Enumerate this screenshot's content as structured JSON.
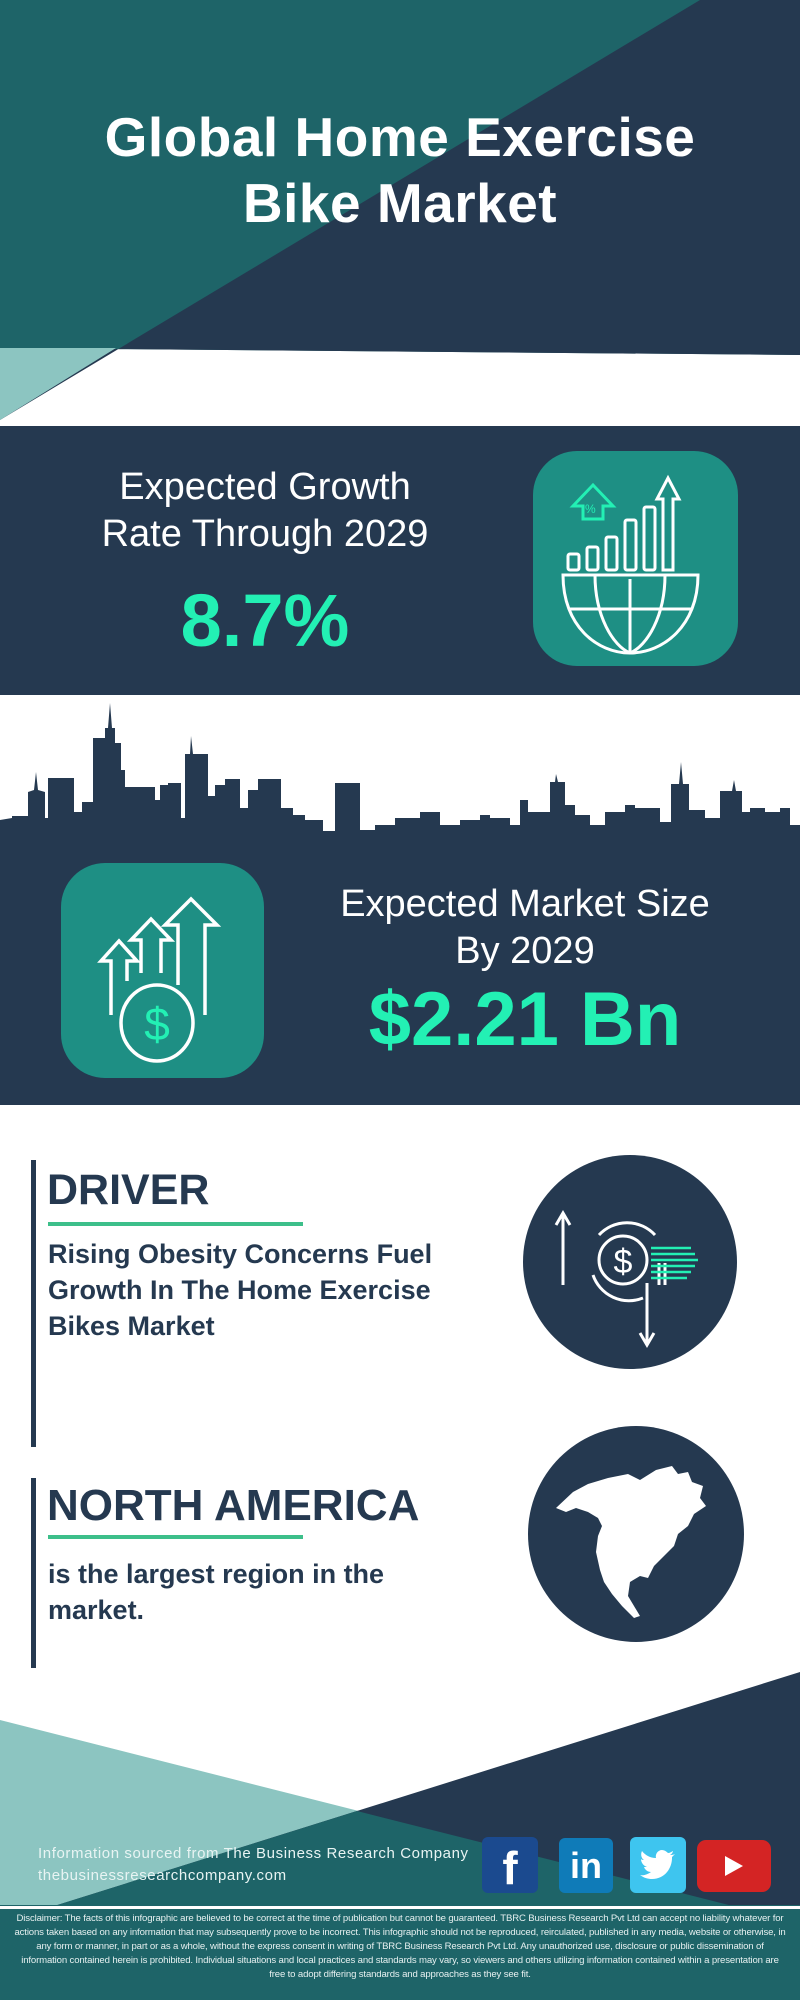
{
  "header": {
    "title_line1": "Global Home Exercise",
    "title_line2": "Bike Market"
  },
  "growth": {
    "label_line1": "Expected Growth",
    "label_line2": "Rate Through 2029",
    "value": "8.7%",
    "icon": "globe-bar-chart-growth-icon"
  },
  "market_size": {
    "label_line1": "Expected Market Size",
    "label_line2": "By 2029",
    "value": "$2.21 Bn",
    "icon": "dollar-rising-arrows-icon"
  },
  "driver": {
    "title": "DRIVER",
    "text": "Rising Obesity Concerns Fuel Growth In The Home Exercise Bikes Market",
    "icon": "dollar-exchange-icon"
  },
  "region": {
    "title": "NORTH AMERICA",
    "text": "is the largest region in the market.",
    "icon": "north-america-map-icon"
  },
  "footer": {
    "source": "Information sourced from The Business Research Company",
    "website": "thebusinessresearchcompany.com",
    "social": [
      {
        "name": "facebook",
        "color": "#1b4a8f"
      },
      {
        "name": "linkedin",
        "color": "#0f7bb8"
      },
      {
        "name": "twitter",
        "color": "#3ec5ef"
      },
      {
        "name": "youtube",
        "color": "#d42424"
      }
    ],
    "disclaimer": "Disclaimer: The facts of this infographic are believed to be correct at the time of publication but cannot be guaranteed. TBRC Business Research Pvt Ltd can accept no liability whatever for actions taken based on any information that may subsequently prove to be incorrect. This infographic should not be reproduced, reirculated, published in any media, website or otherwise, in any form or manner, in part or as a whole, without the express consent in writing of TBRC Business Research Pvt Ltd. Any unauthorized use, disclosure or public dissemination of information contained herein is prohibited. Individual situations and local practices and standards may vary, so viewers and others utilizing information contained within a presentation are free to adopt differing standards and approaches as they see fit."
  },
  "colors": {
    "navy": "#253950",
    "teal": "#1e6468",
    "icon_teal": "#1e8f84",
    "light_teal": "#8cc5c1",
    "accent": "#23f0b4",
    "underline": "#3dbf8a"
  }
}
